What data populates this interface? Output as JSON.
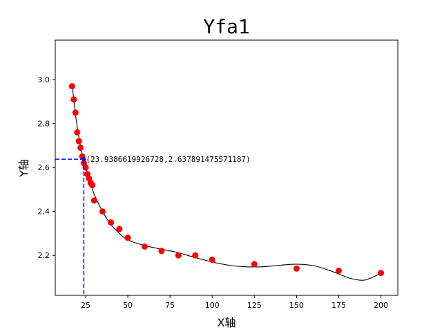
{
  "chart_data": {
    "type": "scatter",
    "title": "Yfa1",
    "xlabel": "X轴",
    "ylabel": "Y轴",
    "xlim": [
      7,
      210
    ],
    "ylim": [
      2.018,
      3.18
    ],
    "xticks": [
      25,
      50,
      75,
      100,
      125,
      150,
      175,
      200
    ],
    "xtick_labels": [
      "25",
      "50",
      "75",
      "100",
      "125",
      "150",
      "175",
      "200"
    ],
    "yticks": [
      2.2,
      2.4,
      2.6,
      2.8,
      3.0
    ],
    "ytick_labels": [
      "2.2",
      "2.4",
      "2.6",
      "2.8",
      "3.0"
    ],
    "grid": false,
    "series": [
      {
        "kind": "scatter",
        "color": "#ff0000",
        "x": [
          17,
          18,
          19,
          20,
          21,
          22,
          23,
          24,
          25,
          26,
          27,
          28,
          29,
          30,
          35,
          40,
          45,
          50,
          60,
          70,
          80,
          90,
          100,
          125,
          150,
          175,
          200
        ],
        "y": [
          2.97,
          2.91,
          2.85,
          2.76,
          2.72,
          2.69,
          2.65,
          2.62,
          2.6,
          2.57,
          2.55,
          2.53,
          2.52,
          2.45,
          2.4,
          2.35,
          2.32,
          2.28,
          2.24,
          2.22,
          2.2,
          2.2,
          2.18,
          2.16,
          2.14,
          2.13,
          2.12
        ]
      },
      {
        "kind": "line",
        "color": "#000000",
        "x": [
          17,
          19,
          21,
          23,
          25,
          28,
          30,
          35,
          40,
          45,
          50,
          60,
          70,
          80,
          90,
          100,
          110,
          120,
          130,
          140,
          150,
          160,
          170,
          180,
          185,
          190,
          195,
          200
        ],
        "y": [
          2.98,
          2.84,
          2.74,
          2.66,
          2.6,
          2.53,
          2.48,
          2.4,
          2.34,
          2.3,
          2.27,
          2.245,
          2.228,
          2.212,
          2.19,
          2.17,
          2.155,
          2.148,
          2.148,
          2.155,
          2.16,
          2.153,
          2.13,
          2.1,
          2.09,
          2.087,
          2.1,
          2.12
        ]
      }
    ],
    "marker_point": {
      "x": 23.9386619926728,
      "y": 2.637891475571187,
      "label": "(23.9386619926728,2.637891475571187)",
      "guide_color": "#0000ff"
    }
  }
}
